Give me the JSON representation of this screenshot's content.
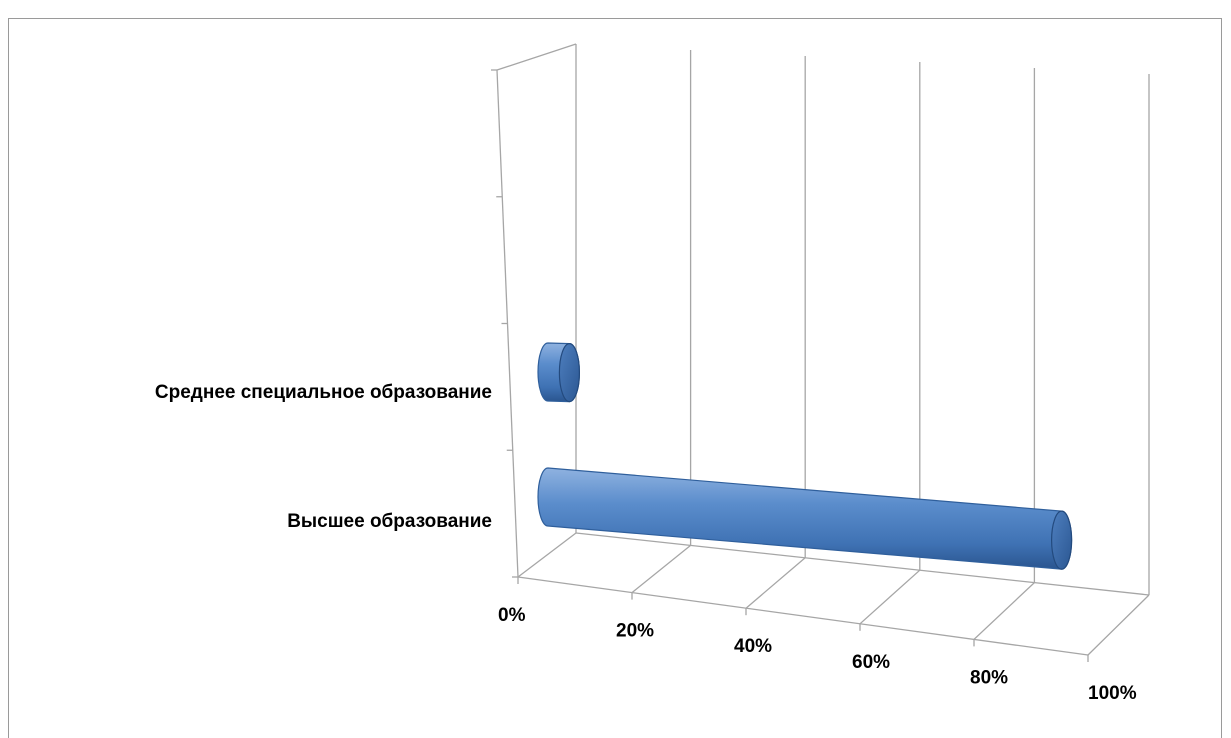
{
  "chart_data": {
    "type": "bar",
    "orientation": "horizontal",
    "style": "3d-cylinder",
    "title": "",
    "categories": [
      "Высшее образование",
      "Среднее специальное образование"
    ],
    "values": [
      96,
      4
    ],
    "x_ticks": [
      "0%",
      "20%",
      "40%",
      "60%",
      "80%",
      "100%"
    ],
    "xlim": [
      0,
      100
    ],
    "xlabel": "",
    "ylabel": "",
    "grid": true,
    "legend": "none",
    "colors": {
      "bar": "#4a7ebf",
      "bar_dark": "#2f5f9c",
      "bar_end": "#3b6aa8",
      "grid": "#a6a6a6",
      "frame": "#9a9a9a"
    }
  }
}
